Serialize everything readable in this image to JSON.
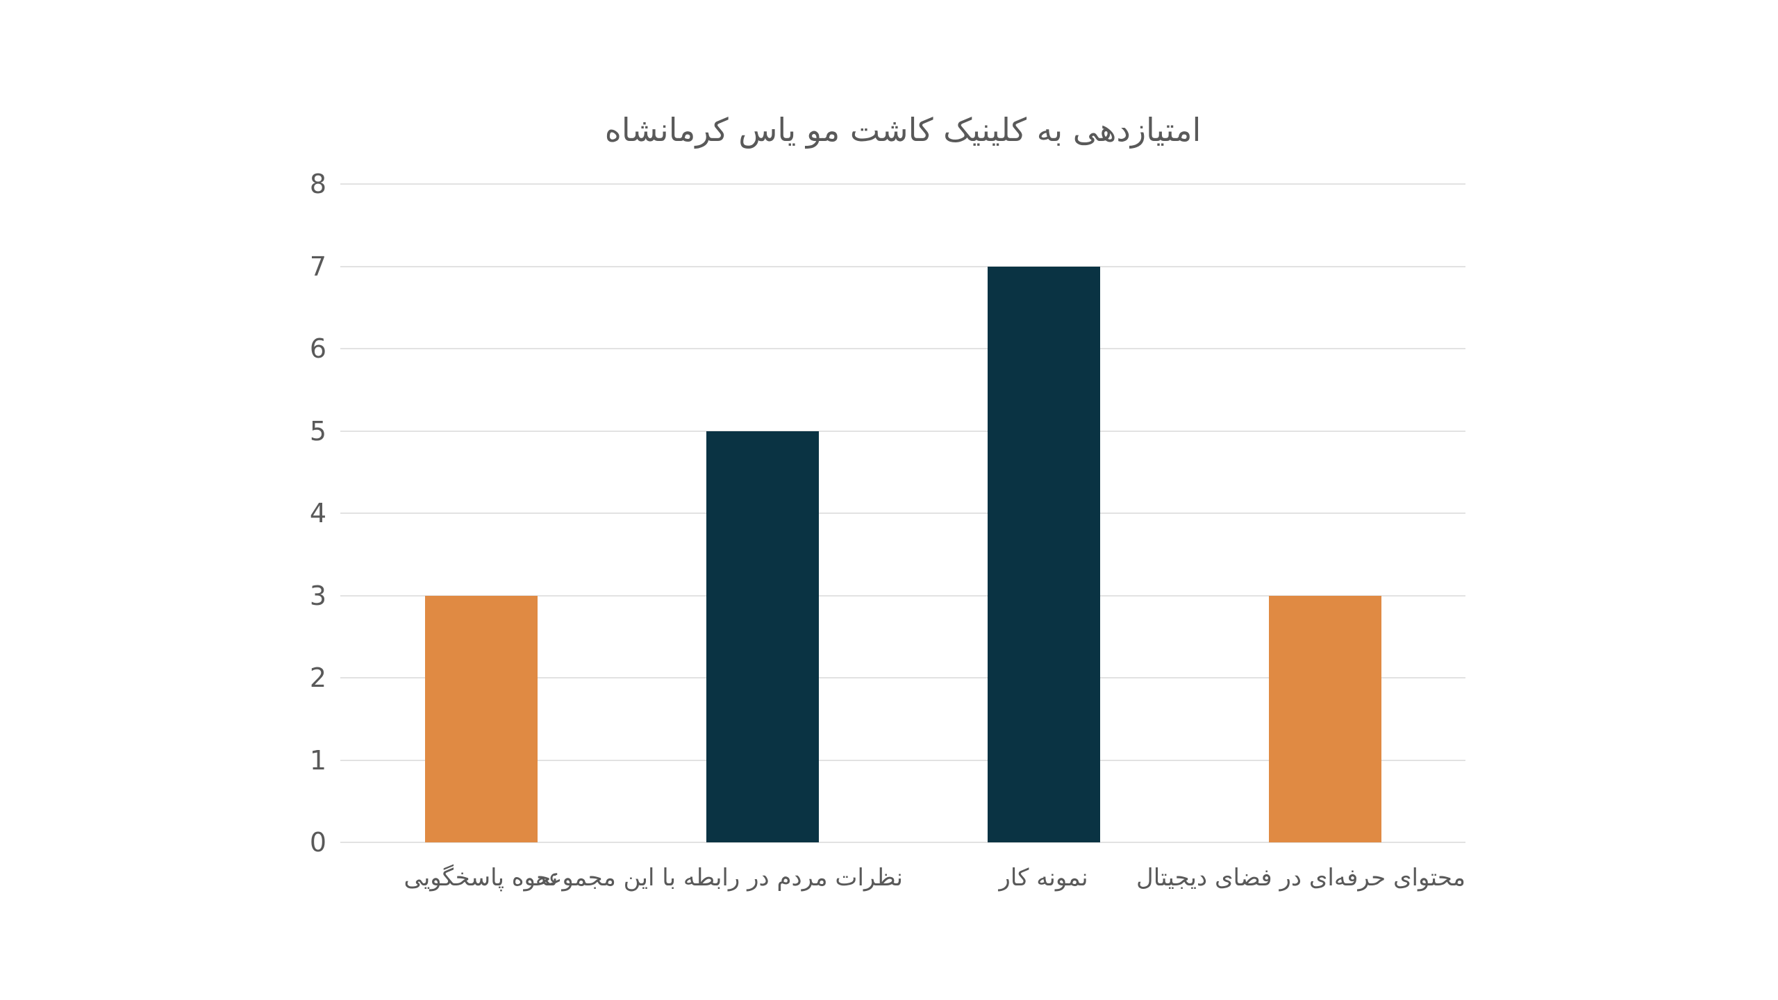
{
  "chart_data": {
    "type": "bar",
    "title": "امتیازدهی به کلینیک کاشت مو یاس کرمانشاه",
    "categories": [
      "نحوه پاسخگویی",
      "نظرات مردم در رابطه با این مجموعه",
      "نمونه کار",
      "محتوای حرفه‌ای در فضای دیجیتال"
    ],
    "values": [
      3,
      5,
      7,
      3
    ],
    "bar_colors": [
      "#E08A43",
      "#0A3343",
      "#0A3343",
      "#E08A43"
    ],
    "ylim": [
      0,
      8
    ],
    "ytick_step": 1,
    "xlabel": "",
    "ylabel": "",
    "grid": "horizontal-only",
    "legend_position": "none"
  },
  "style": {
    "background_color": "#FFFFFF",
    "grid_color": "#E2E2E2",
    "text_color": "#595959",
    "accent_orange": "#E08A43",
    "accent_dark_teal": "#0A3343"
  }
}
